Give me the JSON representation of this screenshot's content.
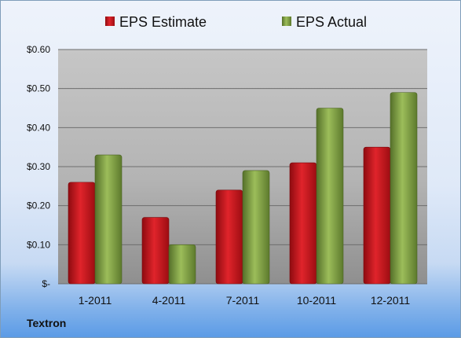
{
  "company_label": "Textron",
  "colors": {
    "estimate": "#c8141c",
    "actual": "#7a9a3a"
  },
  "chart_data": {
    "type": "bar",
    "categories": [
      "1-2011",
      "4-2011",
      "7-2011",
      "10-2011",
      "12-2011"
    ],
    "series": [
      {
        "name": "EPS Estimate",
        "values": [
          0.26,
          0.17,
          0.24,
          0.31,
          0.35
        ]
      },
      {
        "name": "EPS Actual",
        "values": [
          0.33,
          0.1,
          0.29,
          0.45,
          0.49
        ]
      }
    ],
    "ylim": [
      0,
      0.6
    ],
    "ytick_labels": [
      "$-",
      "$0.10",
      "$0.20",
      "$0.30",
      "$0.40",
      "$0.50",
      "$0.60"
    ],
    "legend_position": "top",
    "grid": true
  }
}
